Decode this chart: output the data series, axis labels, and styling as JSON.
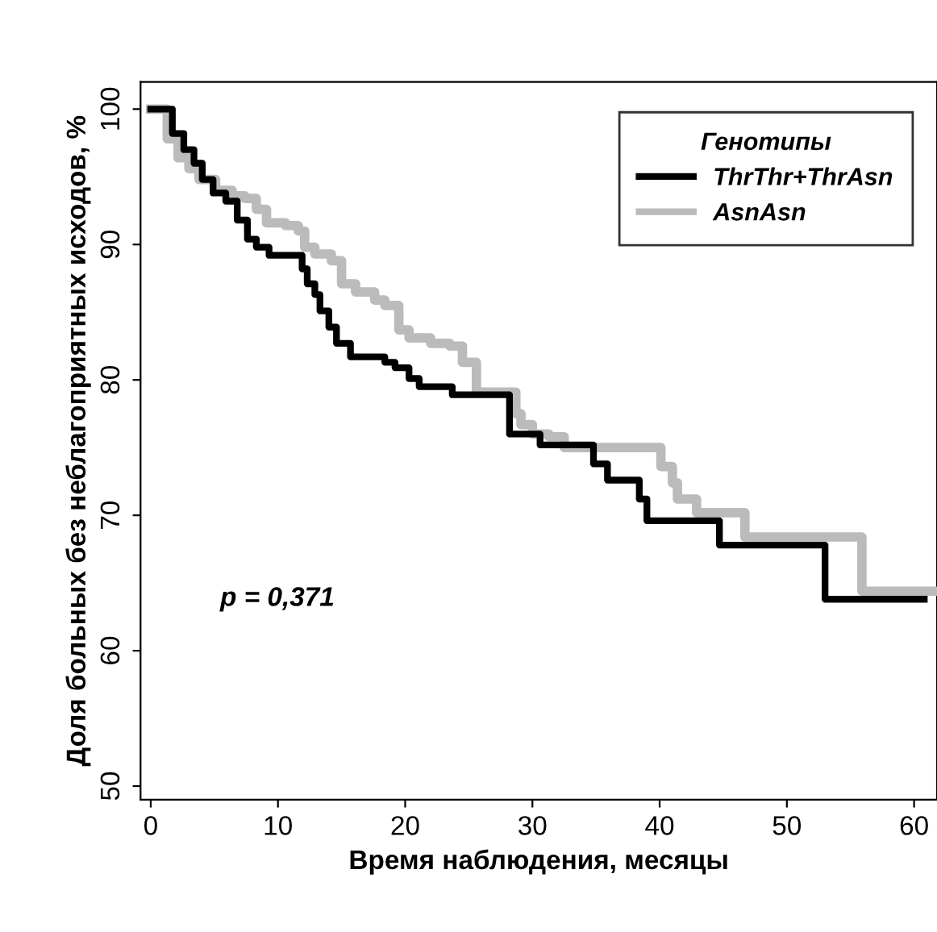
{
  "chart_data": {
    "type": "step",
    "xlabel": "Время наблюдения, месяцы",
    "ylabel": "Доля больных без неблагоприятных исходов, %",
    "legend_title": "Генотипы",
    "legend": "top right",
    "xlim": [
      -0.8,
      61.8
    ],
    "ylim": [
      49,
      102
    ],
    "xticks": [
      0,
      10,
      20,
      30,
      40,
      50,
      60
    ],
    "yticks": [
      50,
      60,
      70,
      80,
      90,
      100
    ],
    "grid": false,
    "annotations": [
      "p = 0,371"
    ],
    "series": [
      {
        "name": "ThrThr+ThrAsn",
        "color": "#000000",
        "x": [
          0,
          1.7,
          2.6,
          3.4,
          4.05,
          4.9,
          5.9,
          6.8,
          7.6,
          8.3,
          9.3,
          11.9,
          12.3,
          12.9,
          13.3,
          14.0,
          14.6,
          15.7,
          18.4,
          19.2,
          20.3,
          21.1,
          23.7,
          28.2,
          30.6,
          34.8,
          35.9,
          38.4,
          39.0,
          44.7,
          53.0,
          60.8
        ],
        "values": [
          100,
          98.2,
          97.0,
          96.0,
          94.8,
          93.8,
          93.2,
          91.8,
          90.4,
          89.8,
          89.2,
          88.2,
          87.1,
          86.3,
          85.1,
          83.9,
          82.7,
          81.7,
          81.3,
          80.9,
          80.1,
          79.5,
          78.9,
          76.0,
          75.2,
          73.8,
          72.6,
          71.2,
          69.6,
          67.8,
          63.8,
          63.8
        ]
      },
      {
        "name": "AsnAsn",
        "color": "#bbbbbb",
        "x": [
          0,
          1.3,
          2.15,
          3.0,
          3.8,
          5.1,
          6.4,
          7.4,
          8.3,
          9.1,
          10.6,
          11.6,
          12.1,
          12.9,
          14.2,
          15.0,
          16.1,
          17.6,
          18.4,
          19.5,
          20.3,
          22.0,
          23.5,
          24.5,
          25.6,
          28.7,
          29.1,
          30.0,
          31.3,
          32.5,
          40.1,
          41.0,
          41.4,
          42.9,
          46.7,
          55.9,
          61.8
        ],
        "values": [
          100,
          97.8,
          96.4,
          95.6,
          94.8,
          94.0,
          93.6,
          93.4,
          92.6,
          91.6,
          91.4,
          91.0,
          89.8,
          89.3,
          88.8,
          87.1,
          86.5,
          85.9,
          85.5,
          83.7,
          83.1,
          82.7,
          82.5,
          81.3,
          79.1,
          77.5,
          76.7,
          76.0,
          75.8,
          75.0,
          73.6,
          72.4,
          71.2,
          70.2,
          68.4,
          64.4,
          64.4
        ]
      }
    ]
  }
}
